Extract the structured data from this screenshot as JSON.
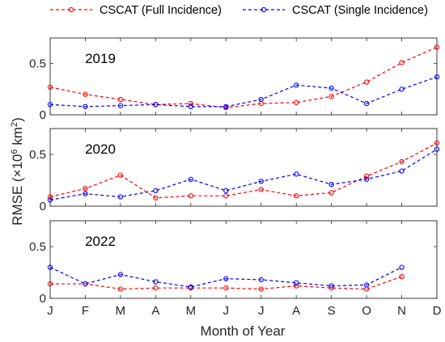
{
  "chart_data": {
    "type": "line",
    "title": "",
    "xlabel": "Month of Year",
    "ylabel": "RMSE (×10⁶ km²)",
    "ylabel_parts": {
      "prefix": "RMSE (×10",
      "exp1": "6",
      "mid": " km",
      "exp2": "2",
      "suffix": ")"
    },
    "categories": [
      "J",
      "F",
      "M",
      "A",
      "M",
      "J",
      "J",
      "A",
      "S",
      "O",
      "N",
      "D"
    ],
    "ylim": [
      0,
      0.75
    ],
    "yticks": [
      "0",
      "0.5"
    ],
    "legend": {
      "placement": "top",
      "entries": [
        "CSCAT (Full Incidence)",
        "CSCAT (Single Incidence)"
      ]
    },
    "colors": {
      "full": "#ff0000",
      "single": "#0000ff"
    },
    "panels": [
      {
        "title": "2019",
        "series": [
          {
            "name": "CSCAT (Full Incidence)",
            "values": [
              0.27,
              0.2,
              0.15,
              0.1,
              0.11,
              0.07,
              0.11,
              0.12,
              0.18,
              0.32,
              0.51,
              0.66
            ]
          },
          {
            "name": "CSCAT (Single Incidence)",
            "values": [
              0.1,
              0.08,
              0.09,
              0.1,
              0.08,
              0.08,
              0.15,
              0.29,
              0.26,
              0.11,
              0.25,
              0.37
            ]
          }
        ]
      },
      {
        "title": "2020",
        "series": [
          {
            "name": "CSCAT (Full Incidence)",
            "values": [
              0.09,
              0.17,
              0.3,
              0.08,
              0.1,
              0.1,
              0.16,
              0.1,
              0.13,
              0.29,
              0.43,
              0.61
            ]
          },
          {
            "name": "CSCAT (Single Incidence)",
            "values": [
              0.06,
              0.12,
              0.09,
              0.15,
              0.26,
              0.15,
              0.24,
              0.31,
              0.21,
              0.26,
              0.34,
              0.55
            ]
          }
        ]
      },
      {
        "title": "2022",
        "series": [
          {
            "name": "CSCAT (Full Incidence)",
            "values": [
              0.14,
              0.14,
              0.09,
              0.1,
              0.1,
              0.1,
              0.09,
              0.12,
              0.1,
              0.09,
              0.21,
              null
            ]
          },
          {
            "name": "CSCAT (Single Incidence)",
            "values": [
              0.3,
              0.14,
              0.23,
              0.16,
              0.11,
              0.19,
              0.18,
              0.15,
              0.12,
              0.13,
              0.3,
              null
            ]
          }
        ]
      }
    ]
  }
}
